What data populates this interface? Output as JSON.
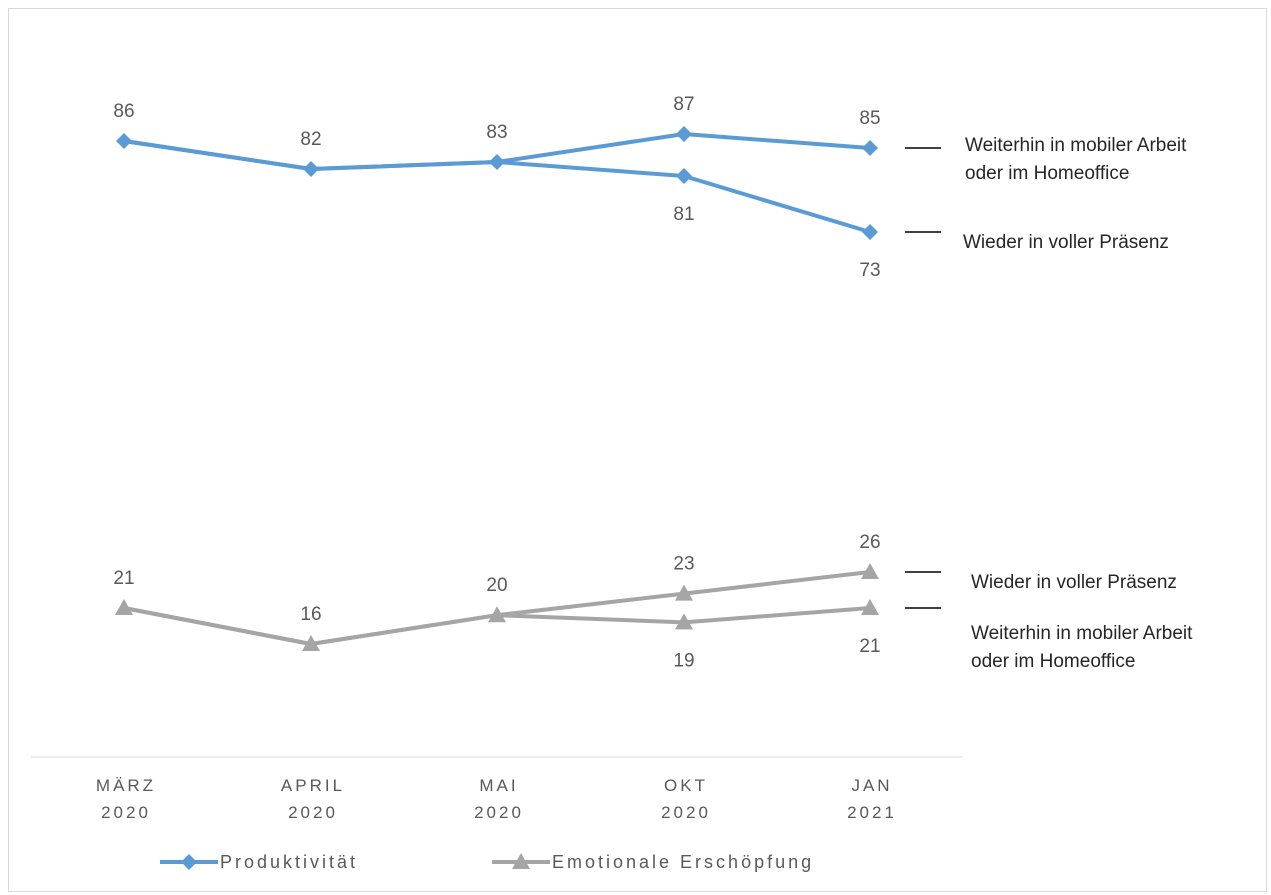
{
  "chart_data": {
    "type": "line",
    "categories": [
      [
        "MÄRZ",
        "2020"
      ],
      [
        "APRIL",
        "2020"
      ],
      [
        "MAI",
        "2020"
      ],
      [
        "OKT",
        "2020"
      ],
      [
        "JAN",
        "2021"
      ]
    ],
    "series": [
      {
        "name": "Produktivität",
        "color": "#5b9bd5",
        "marker": "diamond",
        "branches": [
          {
            "label": "Weiterhin in mobiler Arbeit\noder im Homeoffice",
            "values": [
              86,
              82,
              83,
              87,
              85
            ]
          },
          {
            "label": "Wieder in voller Präsenz",
            "values": [
              86,
              82,
              83,
              81,
              73
            ]
          }
        ]
      },
      {
        "name": "Emotionale Erschöpfung",
        "color": "#a5a5a5",
        "marker": "triangle",
        "branches": [
          {
            "label": "Wieder in voller Präsenz",
            "values": [
              21,
              16,
              20,
              23,
              26
            ]
          },
          {
            "label": "Weiterhin in mobiler Arbeit\noder im Homeoffice",
            "values": [
              21,
              16,
              20,
              19,
              21
            ]
          }
        ]
      }
    ],
    "data_labels": [
      {
        "series": 0,
        "index": 0,
        "text": "86"
      },
      {
        "series": 0,
        "index": 1,
        "text": "82"
      },
      {
        "series": 0,
        "index": 2,
        "text": "83"
      },
      {
        "series": 0,
        "index": 3,
        "text": "87"
      },
      {
        "series": 0,
        "index": 3,
        "text": "81"
      },
      {
        "series": 0,
        "index": 4,
        "text": "85"
      },
      {
        "series": 0,
        "index": 4,
        "text": "73"
      },
      {
        "series": 1,
        "index": 0,
        "text": "21"
      },
      {
        "series": 1,
        "index": 1,
        "text": "16"
      },
      {
        "series": 1,
        "index": 2,
        "text": "20"
      },
      {
        "series": 1,
        "index": 3,
        "text": "23"
      },
      {
        "series": 1,
        "index": 3,
        "text": "19"
      },
      {
        "series": 1,
        "index": 4,
        "text": "26"
      },
      {
        "series": 1,
        "index": 4,
        "text": "21"
      }
    ],
    "legend": [
      "Produktivität",
      "Emotionale Erschöpfung"
    ],
    "legend_position": "bottom",
    "grid": false,
    "title": "",
    "xlabel": "",
    "ylabel": ""
  }
}
